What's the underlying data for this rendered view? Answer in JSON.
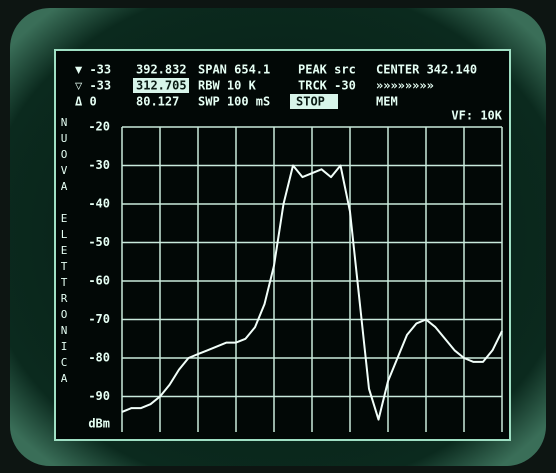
{
  "header": {
    "rows": [
      [
        "▼ -33",
        "392.832",
        "SPAN 654.1",
        "PEAK src",
        "CENTER 342.140"
      ],
      [
        "▽ -33",
        "312.705",
        "RBW  10 K",
        "TRCK -30",
        "»»»»»»»»"
      ],
      [
        "Δ  0",
        "80.127",
        "SWP 100 mS",
        "STOP",
        "MEM",
        "VF: 10K"
      ]
    ],
    "brand": "NUOVA ELETTRONICA"
  },
  "chart_data": {
    "type": "line",
    "y_label": "dBm",
    "categories": [
      null,
      null,
      null,
      null,
      null,
      null,
      null,
      null,
      null,
      null,
      null,
      null,
      null,
      null,
      null,
      null,
      null,
      null,
      null,
      null,
      null,
      null,
      null,
      null,
      null,
      null,
      null,
      null,
      null,
      null,
      null,
      null,
      null,
      null,
      null,
      null,
      null,
      null,
      null,
      null,
      null
    ],
    "values": [
      -94,
      -93,
      -93,
      -92,
      -90,
      -87,
      -83,
      -80,
      -79,
      -78,
      -77,
      -76,
      -76,
      -75,
      -72,
      -66,
      -56,
      -40,
      -30,
      -33,
      -32,
      -31,
      -33,
      -30,
      -42,
      -65,
      -88,
      -96,
      -86,
      -80,
      -74,
      -71,
      -70,
      -72,
      -75,
      -78,
      -80,
      -81,
      -81,
      -78,
      -73
    ],
    "color": "#f2fffa",
    "ylim": [
      -100,
      -20
    ],
    "yticks": [
      -20,
      -30,
      -40,
      -50,
      -60,
      -70,
      -80,
      -90
    ],
    "grid": true
  }
}
